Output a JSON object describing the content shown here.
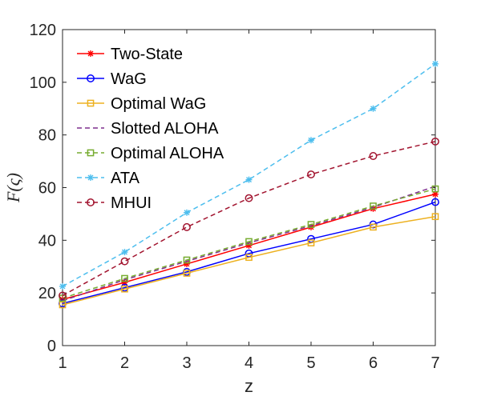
{
  "chart_data": {
    "type": "line",
    "xlabel": "z",
    "ylabel": "F(ς)",
    "xlim": [
      1,
      7
    ],
    "ylim": [
      0,
      120
    ],
    "xticks": [
      1,
      2,
      3,
      4,
      5,
      6,
      7
    ],
    "yticks": [
      0,
      20,
      40,
      60,
      80,
      100,
      120
    ],
    "grid": false,
    "legend_position": "top-left",
    "x": [
      1,
      2,
      3,
      4,
      5,
      6,
      7
    ],
    "series": [
      {
        "name": "Two-State",
        "values": [
          17.5,
          24,
          31,
          38,
          45,
          52,
          57.5
        ],
        "color": "#FF0000",
        "line_style": "solid",
        "marker": "asterisk"
      },
      {
        "name": "WaG",
        "values": [
          16,
          22,
          28,
          35,
          40.5,
          46,
          54.5
        ],
        "color": "#0000FF",
        "line_style": "solid",
        "marker": "circle"
      },
      {
        "name": "Optimal WaG",
        "values": [
          15.5,
          21.5,
          27.5,
          33.5,
          39,
          45,
          49
        ],
        "color": "#EDB120",
        "line_style": "solid",
        "marker": "square"
      },
      {
        "name": "Slotted ALOHA",
        "values": [
          17,
          25,
          32,
          39,
          45.5,
          52.5,
          60.5
        ],
        "color": "#7E2F8E",
        "line_style": "dashed",
        "marker": "none"
      },
      {
        "name": "Optimal ALOHA",
        "values": [
          18,
          25.5,
          32.5,
          39.5,
          46,
          53,
          59.5
        ],
        "color": "#77AC30",
        "line_style": "dashed",
        "marker": "square"
      },
      {
        "name": "ATA",
        "values": [
          22.5,
          35.5,
          50.5,
          63,
          78,
          90,
          107
        ],
        "color": "#4DBEEE",
        "line_style": "dashed",
        "marker": "asterisk"
      },
      {
        "name": "MHUI",
        "values": [
          19,
          32,
          45,
          56,
          65,
          72,
          77.5
        ],
        "color": "#A2142F",
        "line_style": "dashed",
        "marker": "circle"
      }
    ]
  }
}
